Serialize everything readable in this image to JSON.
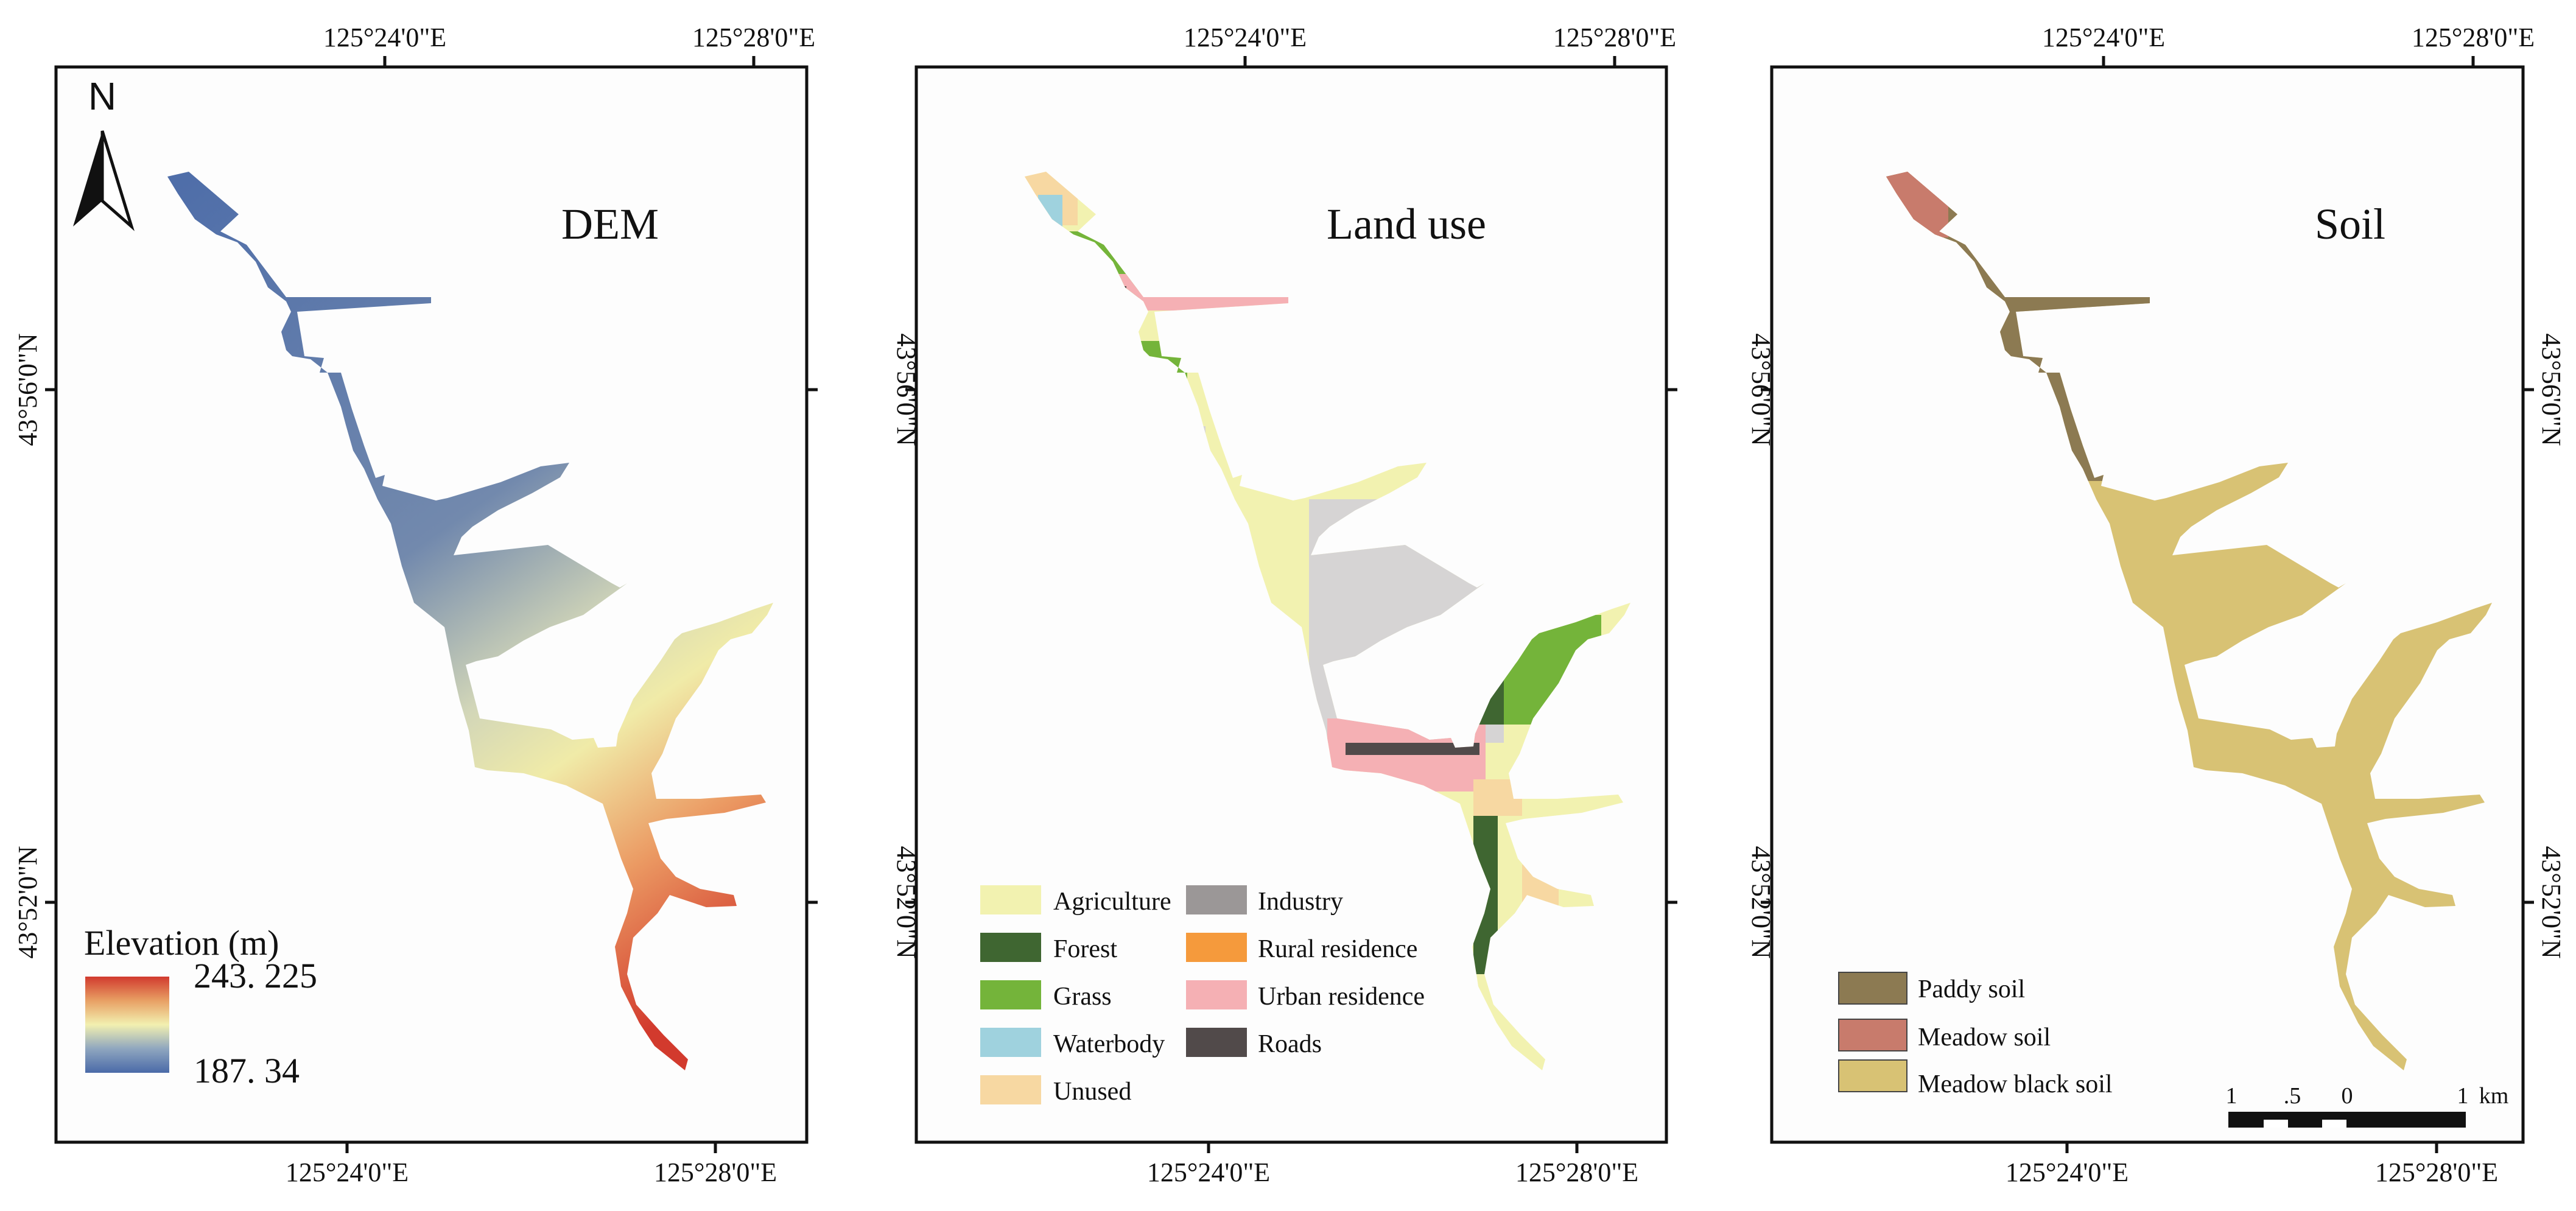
{
  "panels": [
    {
      "title": "DEM",
      "top_labels": [
        "125°24'0\"E",
        "125°28'0\"E"
      ],
      "bottom_labels": [
        "125°24'0\"E",
        "125°28'0\"E"
      ],
      "left_labels": [
        "43°56'0\"N",
        "43°52'0\"N"
      ],
      "right_labels": [
        "43°56'0\"N",
        "43°52'0\"N"
      ]
    },
    {
      "title": "Land use",
      "top_labels": [
        "125°24'0\"E",
        "125°28'0\"E"
      ],
      "bottom_labels": [
        "125°24'0\"E",
        "125°28'0\"E"
      ],
      "left_labels": [
        "43°56'0\"N",
        "43°52'0\"N"
      ],
      "right_labels": [
        "43°56'0\"N",
        "43°52'0\"N"
      ]
    },
    {
      "title": "Soil",
      "top_labels": [
        "125°24'0\"E",
        "125°28'0\"E"
      ],
      "bottom_labels": [
        "125°24'0\"E",
        "125°28'0\"E"
      ],
      "left_labels": [
        "43°56'0\"N",
        "43°52'0\"N"
      ],
      "right_labels": [
        "43°56'0\"N",
        "43°52'0\"N"
      ]
    }
  ],
  "north_arrow_label": "N",
  "elevation_legend": {
    "title": "Elevation (m)",
    "max": "243. 225",
    "min": "187. 34",
    "colors": [
      "#4a6aa8",
      "#8fa6bf",
      "#f2f0b0",
      "#e8a064",
      "#d13a2e"
    ]
  },
  "landuse_legend": [
    {
      "label": "Agriculture",
      "color": "#f2f2b0"
    },
    {
      "label": "Forest",
      "color": "#3f6631"
    },
    {
      "label": "Grass",
      "color": "#74b43a"
    },
    {
      "label": "Waterbody",
      "color": "#9fd2de"
    },
    {
      "label": "Unused",
      "color": "#f7d8a2"
    },
    {
      "label": "Industry",
      "color": "#9b9797"
    },
    {
      "label": "Rural residence",
      "color": "#f59a3c"
    },
    {
      "label": "Urban residence",
      "color": "#f5b0b4"
    },
    {
      "label": "Roads",
      "color": "#514a4a"
    }
  ],
  "soil_legend": [
    {
      "label": "Paddy soil",
      "color": "#8c7a52"
    },
    {
      "label": "Meadow soil",
      "color": "#c87b6c"
    },
    {
      "label": "Meadow black soil",
      "color": "#d8c274"
    }
  ],
  "scale_bar": {
    "labels": [
      "1",
      ".5",
      "0",
      "1"
    ],
    "unit": "km"
  }
}
